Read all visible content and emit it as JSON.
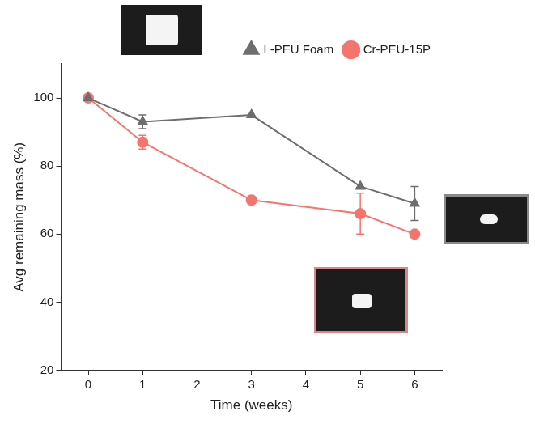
{
  "chart_data": {
    "type": "line",
    "x_label": "Time (weeks)",
    "y_label": "Avg remaining mass (%)",
    "x": [
      0,
      1,
      3,
      5,
      6
    ],
    "series": [
      {
        "name": "L-PEU Foam",
        "color": "#6e6e6e",
        "marker": "triangle",
        "values": [
          100,
          93,
          95,
          74,
          69
        ],
        "errors": [
          0,
          2,
          0,
          0,
          5
        ]
      },
      {
        "name": "Cr-PEU-15P",
        "color": "#f4756e",
        "marker": "circle",
        "values": [
          100,
          87,
          70,
          66,
          60
        ],
        "errors": [
          0,
          2,
          0,
          6,
          0
        ]
      }
    ],
    "xlim": [
      -0.5,
      6.5
    ],
    "xticks": [
      0,
      1,
      2,
      3,
      4,
      5,
      6
    ],
    "ylim": [
      20,
      110
    ],
    "yticks": [
      20,
      40,
      60,
      80,
      100
    ],
    "grid": false,
    "legend": "upper right"
  }
}
